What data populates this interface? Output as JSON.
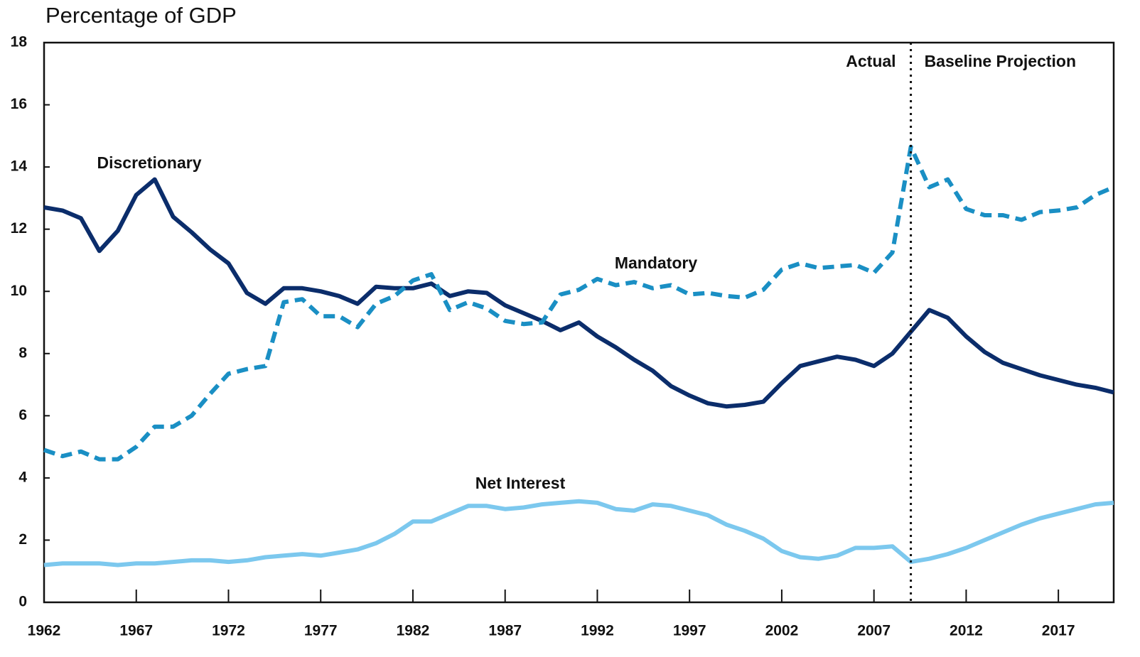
{
  "chart_data": {
    "type": "line",
    "title": "Percentage of GDP",
    "x": [
      1962,
      1963,
      1964,
      1965,
      1966,
      1967,
      1968,
      1969,
      1970,
      1971,
      1972,
      1973,
      1974,
      1975,
      1976,
      1977,
      1978,
      1979,
      1980,
      1981,
      1982,
      1983,
      1984,
      1985,
      1986,
      1987,
      1988,
      1989,
      1990,
      1991,
      1992,
      1993,
      1994,
      1995,
      1996,
      1997,
      1998,
      1999,
      2000,
      2001,
      2002,
      2003,
      2004,
      2005,
      2006,
      2007,
      2008,
      2009,
      2010,
      2011,
      2012,
      2013,
      2014,
      2015,
      2016,
      2017,
      2018,
      2019,
      2020
    ],
    "series": [
      {
        "name": "Discretionary",
        "color": "#0b2d6b",
        "dash": false,
        "values": [
          12.7,
          12.6,
          12.35,
          11.3,
          11.95,
          13.1,
          13.6,
          12.4,
          11.9,
          11.35,
          10.9,
          9.95,
          9.6,
          10.1,
          10.1,
          10.0,
          9.85,
          9.6,
          10.15,
          10.1,
          10.1,
          10.25,
          9.85,
          10.0,
          9.95,
          9.55,
          9.3,
          9.05,
          8.75,
          9.0,
          8.55,
          8.2,
          7.8,
          7.45,
          6.95,
          6.65,
          6.4,
          6.3,
          6.35,
          6.45,
          7.05,
          7.6,
          7.75,
          7.9,
          7.8,
          7.6,
          8.0,
          8.7,
          9.4,
          9.15,
          8.55,
          8.05,
          7.7,
          7.5,
          7.3,
          7.15,
          7.0,
          6.9,
          6.75
        ]
      },
      {
        "name": "Mandatory",
        "color": "#1a8fc4",
        "dash": true,
        "values": [
          4.9,
          4.7,
          4.85,
          4.6,
          4.6,
          5.0,
          5.65,
          5.65,
          6.0,
          6.7,
          7.35,
          7.5,
          7.6,
          9.65,
          9.75,
          9.2,
          9.2,
          8.85,
          9.6,
          9.85,
          10.35,
          10.55,
          9.4,
          9.65,
          9.45,
          9.05,
          8.95,
          9.0,
          9.9,
          10.05,
          10.4,
          10.2,
          10.3,
          10.1,
          10.2,
          9.9,
          9.95,
          9.85,
          9.8,
          10.05,
          10.7,
          10.9,
          10.75,
          10.8,
          10.85,
          10.6,
          11.25,
          14.65,
          13.35,
          13.6,
          12.65,
          12.45,
          12.45,
          12.3,
          12.55,
          12.6,
          12.7,
          13.1,
          13.35
        ]
      },
      {
        "name": "Net Interest",
        "color": "#7cc8ee",
        "dash": false,
        "values": [
          1.2,
          1.25,
          1.25,
          1.25,
          1.2,
          1.25,
          1.25,
          1.3,
          1.35,
          1.35,
          1.3,
          1.35,
          1.45,
          1.5,
          1.55,
          1.5,
          1.6,
          1.7,
          1.9,
          2.2,
          2.6,
          2.6,
          2.85,
          3.1,
          3.1,
          3.0,
          3.05,
          3.15,
          3.2,
          3.25,
          3.2,
          3.0,
          2.95,
          3.15,
          3.1,
          2.95,
          2.8,
          2.5,
          2.3,
          2.05,
          1.65,
          1.45,
          1.4,
          1.5,
          1.75,
          1.75,
          1.8,
          1.3,
          1.4,
          1.55,
          1.75,
          2.0,
          2.25,
          2.5,
          2.7,
          2.85,
          3.0,
          3.15,
          3.2
        ]
      }
    ],
    "xlim": [
      1962,
      2020
    ],
    "xticks": [
      1962,
      1967,
      1972,
      1977,
      1982,
      1987,
      1992,
      1997,
      2002,
      2007,
      2012,
      2017
    ],
    "ylim": [
      0,
      18
    ],
    "yticks": [
      0,
      2,
      4,
      6,
      8,
      10,
      12,
      14,
      16,
      18
    ],
    "projection_start": 2009,
    "annotations": {
      "actual": "Actual",
      "projection": "Baseline Projection"
    }
  }
}
